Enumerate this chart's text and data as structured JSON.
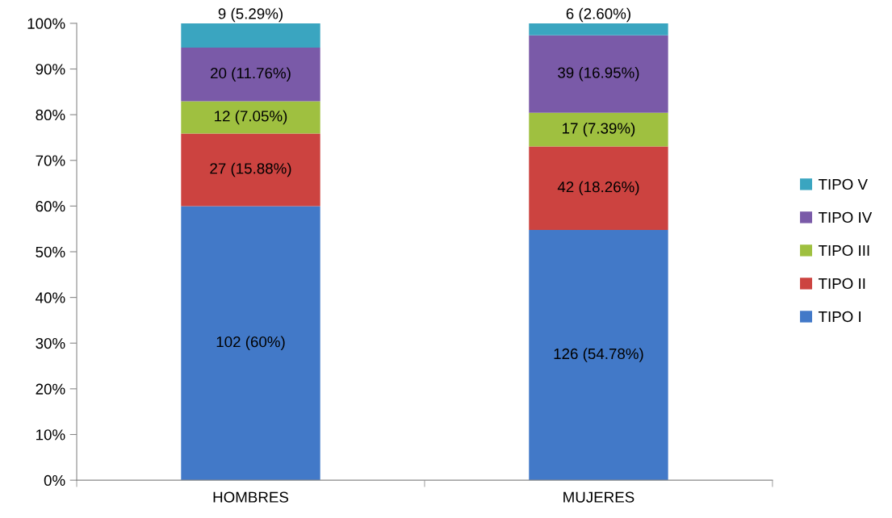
{
  "chart_data": {
    "type": "bar",
    "stacked": true,
    "categories": [
      "HOMBRES",
      "MUJERES"
    ],
    "series": [
      {
        "name": "TIPO I",
        "color": "#4279c8",
        "values": [
          60,
          54.78
        ],
        "value_labels": [
          "102 (60%)",
          "126 (54.78%)"
        ]
      },
      {
        "name": "TIPO II",
        "color": "#cc4340",
        "values": [
          15.88,
          18.26
        ],
        "value_labels": [
          "27 (15.88%)",
          "42 (18.26%)"
        ]
      },
      {
        "name": "TIPO III",
        "color": "#9fc040",
        "values": [
          7.05,
          7.39
        ],
        "value_labels": [
          "12 (7.05%)",
          "17 (7.39%)"
        ]
      },
      {
        "name": "TIPO IV",
        "color": "#7a5aa8",
        "values": [
          11.76,
          16.95
        ],
        "value_labels": [
          "20 (11.76%)",
          "39 (16.95%)"
        ]
      },
      {
        "name": "TIPO V",
        "color": "#3aa5c0",
        "values": [
          5.29,
          2.6
        ],
        "value_labels": [
          "9 (5.29%)",
          "6 (2.60%)"
        ]
      }
    ],
    "ylim": [
      0,
      100
    ],
    "yticks": [
      {
        "value": 0,
        "label": "0%"
      },
      {
        "value": 10,
        "label": "10%"
      },
      {
        "value": 20,
        "label": "20%"
      },
      {
        "value": 30,
        "label": "30%"
      },
      {
        "value": 40,
        "label": "40%"
      },
      {
        "value": 50,
        "label": "50%"
      },
      {
        "value": 60,
        "label": "60%"
      },
      {
        "value": 70,
        "label": "70%"
      },
      {
        "value": 80,
        "label": "80%"
      },
      {
        "value": 90,
        "label": "90%"
      },
      {
        "value": 100,
        "label": "100%"
      }
    ],
    "grid": false,
    "legend": "right"
  }
}
